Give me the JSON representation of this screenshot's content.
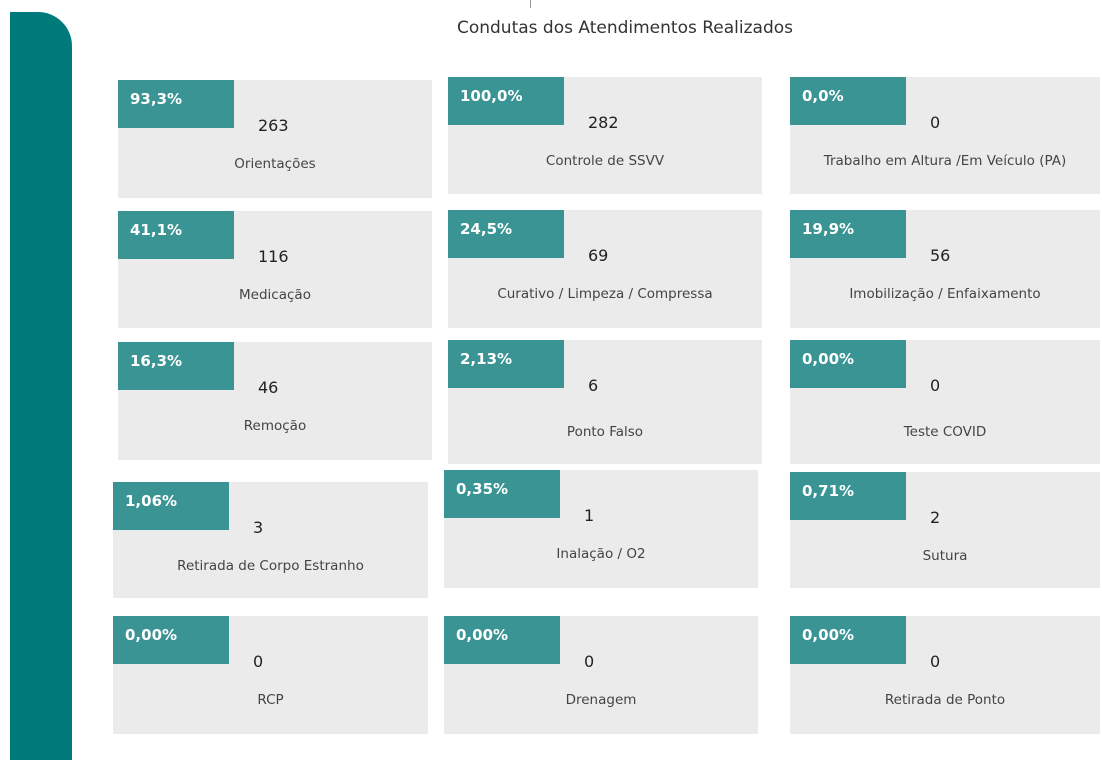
{
  "title": "Condutas dos Atendimentos Realizados",
  "cards": [
    {
      "percent": "93,3%",
      "count": "263",
      "label": "Orientações"
    },
    {
      "percent": "100,0%",
      "count": "282",
      "label": "Controle de SSVV"
    },
    {
      "percent": "0,0%",
      "count": "0",
      "label": "Trabalho em Altura /Em Veículo (PA)"
    },
    {
      "percent": "41,1%",
      "count": "116",
      "label": "Medicação"
    },
    {
      "percent": "24,5%",
      "count": "69",
      "label": "Curativo / Limpeza / Compressa"
    },
    {
      "percent": "19,9%",
      "count": "56",
      "label": "Imobilização / Enfaixamento"
    },
    {
      "percent": "16,3%",
      "count": "46",
      "label": "Remoção"
    },
    {
      "percent": "2,13%",
      "count": "6",
      "label": "Ponto Falso"
    },
    {
      "percent": "0,00%",
      "count": "0",
      "label": "Teste COVID"
    },
    {
      "percent": "1,06%",
      "count": "3",
      "label": "Retirada de Corpo Estranho"
    },
    {
      "percent": "0,35%",
      "count": "1",
      "label": "Inalação / O2"
    },
    {
      "percent": "0,71%",
      "count": "2",
      "label": "Sutura"
    },
    {
      "percent": "0,00%",
      "count": "0",
      "label": "RCP"
    },
    {
      "percent": "0,00%",
      "count": "0",
      "label": "Drenagem"
    },
    {
      "percent": "0,00%",
      "count": "0",
      "label": "Retirada de Ponto"
    }
  ]
}
